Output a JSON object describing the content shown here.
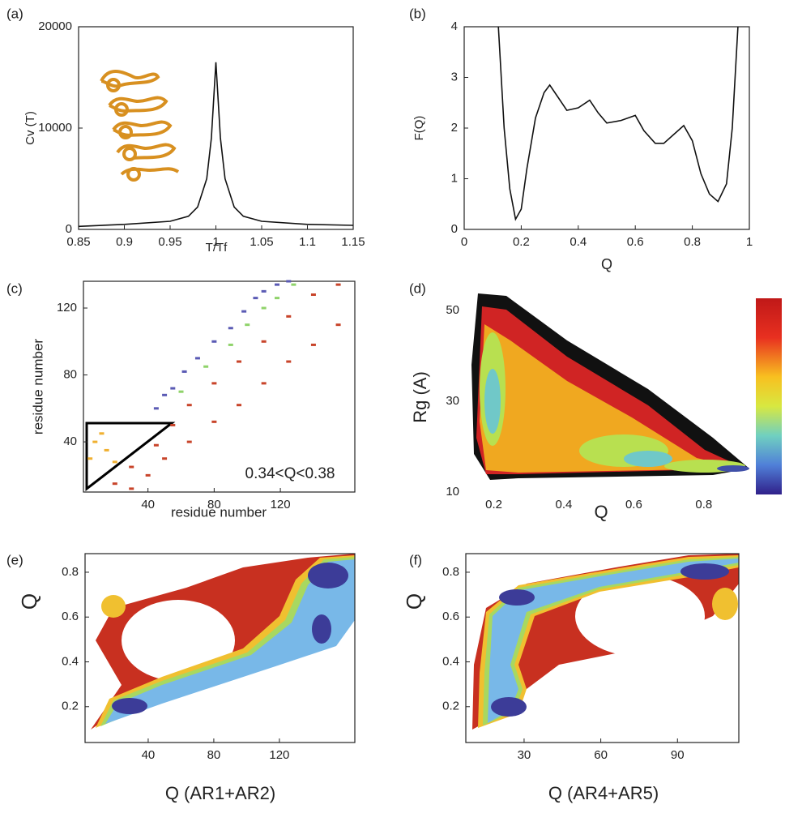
{
  "chart_data": [
    {
      "type": "line",
      "panel_label": "(a)",
      "xlabel": "T/Tf",
      "ylabel": "Cv (T)",
      "frame": true,
      "color": "#111111",
      "x": [
        0.85,
        0.9,
        0.95,
        0.97,
        0.98,
        0.99,
        0.995,
        1.0,
        1.005,
        1.01,
        1.02,
        1.03,
        1.05,
        1.1,
        1.15
      ],
      "values": [
        300,
        500,
        800,
        1300,
        2200,
        5000,
        9000,
        16500,
        9000,
        5000,
        2200,
        1300,
        800,
        500,
        400
      ],
      "xlim": [
        0.85,
        1.15
      ],
      "xticks": [
        0.85,
        0.9,
        0.95,
        1,
        1.05,
        1.1,
        1.15
      ],
      "ylim": [
        0,
        20000
      ],
      "yticks": [
        0,
        10000,
        20000
      ]
    },
    {
      "type": "line",
      "panel_label": "(b)",
      "xlabel": "Q",
      "ylabel": "F(Q)",
      "frame": true,
      "color": "#111111",
      "x": [
        0.12,
        0.14,
        0.16,
        0.18,
        0.2,
        0.22,
        0.25,
        0.28,
        0.3,
        0.33,
        0.36,
        0.4,
        0.44,
        0.47,
        0.5,
        0.55,
        0.6,
        0.63,
        0.67,
        0.7,
        0.73,
        0.77,
        0.8,
        0.83,
        0.86,
        0.89,
        0.92,
        0.94,
        0.96
      ],
      "values": [
        4,
        2,
        0.8,
        0.2,
        0.4,
        1.2,
        2.2,
        2.7,
        2.85,
        2.6,
        2.35,
        2.4,
        2.55,
        2.3,
        2.1,
        2.15,
        2.25,
        1.95,
        1.7,
        1.7,
        1.85,
        2.05,
        1.75,
        1.1,
        0.7,
        0.55,
        0.9,
        2,
        4
      ],
      "xlim": [
        0,
        1
      ],
      "xticks": [
        0,
        0.2,
        0.4,
        0.6,
        0.8,
        1
      ],
      "ylim": [
        0,
        4
      ],
      "yticks": [
        0,
        1,
        2,
        3,
        4
      ]
    },
    {
      "type": "scatter",
      "panel_label": "(c)",
      "xlabel": "residue number",
      "ylabel": "residue number",
      "frame": true,
      "annotation": "0.34<Q<0.38",
      "series": [
        {
          "color": "#5a5ab4",
          "x": [
            45,
            50,
            55,
            62,
            70,
            80,
            90,
            98,
            105,
            110,
            118,
            125
          ],
          "values": [
            60,
            68,
            72,
            82,
            90,
            100,
            108,
            118,
            126,
            130,
            134,
            136
          ]
        },
        {
          "color": "#8fd36a",
          "x": [
            60,
            75,
            90,
            100,
            110,
            118,
            128
          ],
          "values": [
            70,
            85,
            98,
            110,
            120,
            126,
            134
          ]
        },
        {
          "color": "#c8442a",
          "x": [
            20,
            30,
            45,
            55,
            65,
            80,
            95,
            110,
            125,
            140,
            155,
            30,
            40,
            50,
            65,
            80,
            95,
            110,
            125,
            140,
            155
          ],
          "values": [
            15,
            25,
            38,
            50,
            62,
            75,
            88,
            100,
            115,
            128,
            134,
            12,
            20,
            30,
            40,
            52,
            62,
            75,
            88,
            98,
            110
          ]
        },
        {
          "color": "#f0b030",
          "x": [
            5,
            8,
            12,
            15,
            20
          ],
          "values": [
            30,
            40,
            45,
            35,
            28
          ]
        }
      ],
      "xlim": [
        1,
        165
      ],
      "xticks": [
        40,
        80,
        120
      ],
      "ylim": [
        10,
        136
      ],
      "yticks": [
        40,
        80,
        120
      ]
    },
    {
      "type": "density",
      "panel_label": "(d)",
      "xlabel": "Q",
      "ylabel": "Rg (A)",
      "frame": false,
      "xlim": [
        0.12,
        0.93
      ],
      "xticks": [
        0.2,
        0.4,
        0.6,
        0.8
      ],
      "ylim": [
        10,
        55
      ],
      "yticks": [
        10,
        30,
        50
      ]
    },
    {
      "type": "density",
      "panel_label": "(e)",
      "xlabel": "Q (AR1+AR2)",
      "ylabel": "Q",
      "frame": true,
      "xlim": [
        1.5,
        166
      ],
      "xticks": [
        40,
        80,
        120
      ],
      "ylim": [
        0.04,
        0.883
      ],
      "yticks": [
        0.2,
        0.4,
        0.6,
        0.8
      ]
    },
    {
      "type": "density",
      "panel_label": "(f)",
      "xlabel": "Q (AR4+AR5)",
      "ylabel": "Q",
      "frame": true,
      "xlim": [
        7.2,
        114
      ],
      "xticks": [
        30,
        60,
        90
      ],
      "ylim": [
        0.04,
        0.883
      ],
      "yticks": [
        0.2,
        0.4,
        0.6,
        0.8
      ]
    }
  ]
}
